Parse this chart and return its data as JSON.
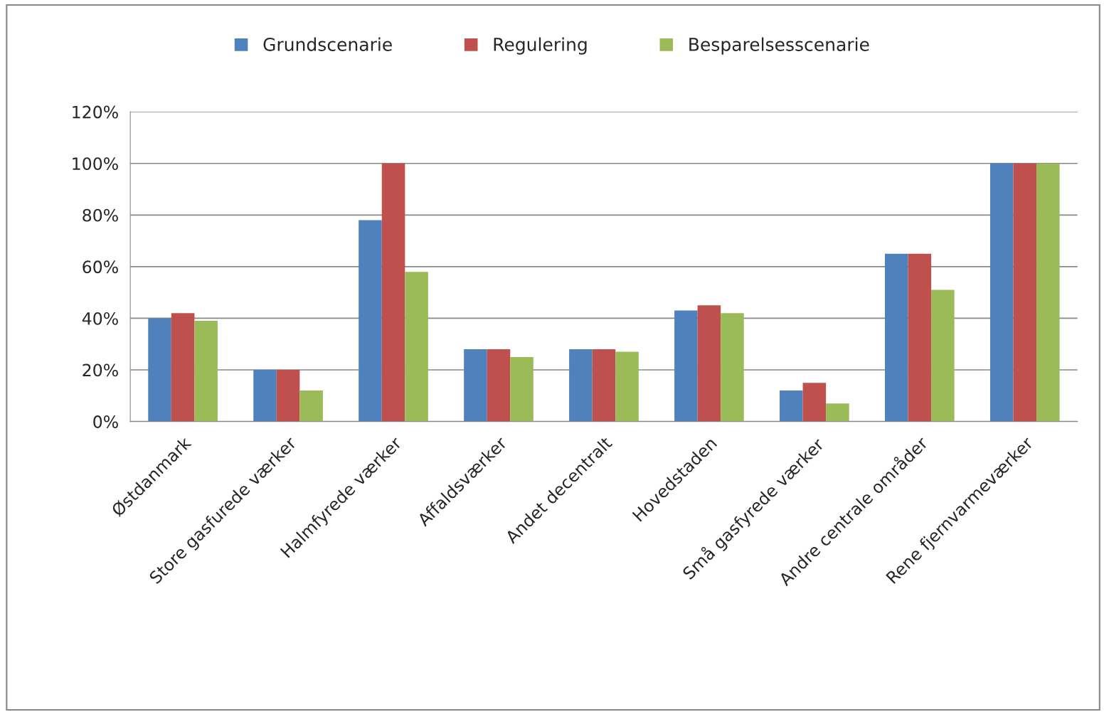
{
  "chart_data": {
    "type": "bar",
    "categories": [
      "Østdanmark",
      "Store gasfurede værker",
      "Halmfyrede værker",
      "Affaldsværker",
      "Andet decentralt",
      "Hovedstaden",
      "Små gasfyrede værker",
      "Andre centrale områder",
      "Rene fjernvarmeværker"
    ],
    "series": [
      {
        "name": "Grundscenarie",
        "color": "#4f81bd",
        "values": [
          40,
          20,
          78,
          28,
          28,
          43,
          12,
          65,
          100
        ]
      },
      {
        "name": "Regulering",
        "color": "#c0504d",
        "values": [
          42,
          20,
          100,
          28,
          28,
          45,
          15,
          65,
          100
        ]
      },
      {
        "name": "Besparelsesscenarie",
        "color": "#9bbb59",
        "values": [
          39,
          12,
          58,
          25,
          27,
          42,
          7,
          51,
          100
        ]
      }
    ],
    "ylim": [
      0,
      120
    ],
    "yticks": [
      {
        "value": 0,
        "label": "0%"
      },
      {
        "value": 20,
        "label": "20%"
      },
      {
        "value": 40,
        "label": "40%"
      },
      {
        "value": 60,
        "label": "60%"
      },
      {
        "value": 80,
        "label": "80%"
      },
      {
        "value": 100,
        "label": "100%"
      },
      {
        "value": 120,
        "label": "120%"
      }
    ],
    "grid": "y",
    "legend": "top"
  }
}
